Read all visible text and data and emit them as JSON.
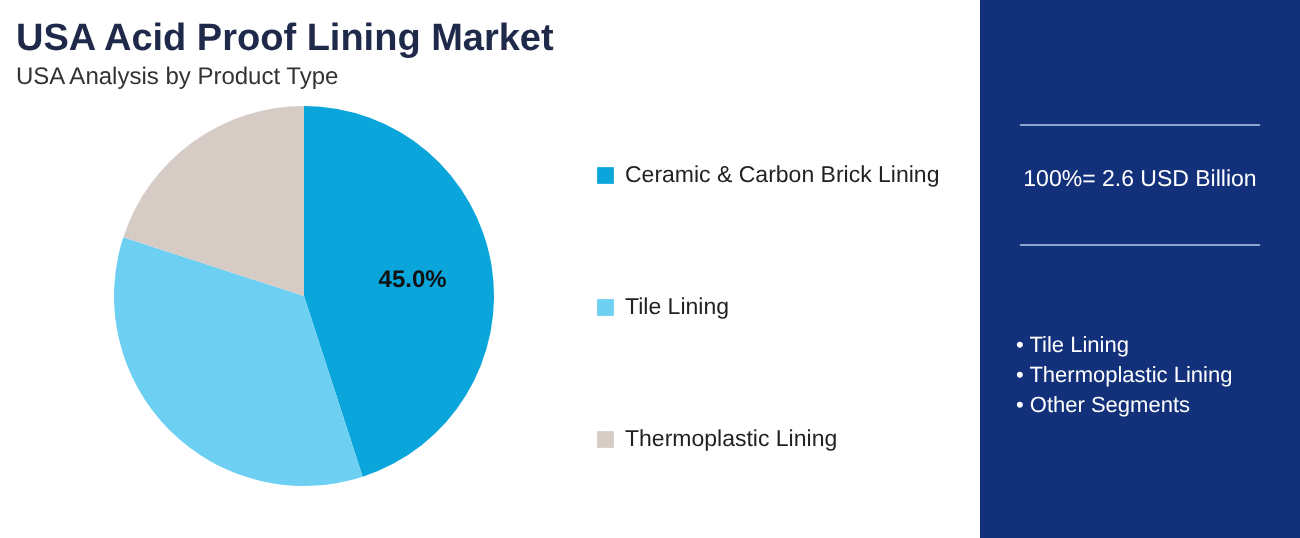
{
  "chart_data": {
    "type": "pie",
    "title": "USA Acid Proof Lining Market",
    "subtitle": "USA Analysis by Product Type",
    "categories": [
      "Ceramic & Carbon Brick Lining",
      "Tile Lining",
      "Thermoplastic Lining"
    ],
    "values": [
      45,
      35,
      20
    ],
    "colors": [
      "#0aa5db",
      "#6dcff2",
      "#d6cbc5"
    ],
    "value_labels": [
      "45.0%",
      null,
      null
    ],
    "legend": "right",
    "annotations": [
      "100%= 2.6 USD Billion",
      "• Tile Lining",
      "• Thermoplastic Lining",
      "• Other Segments"
    ]
  }
}
